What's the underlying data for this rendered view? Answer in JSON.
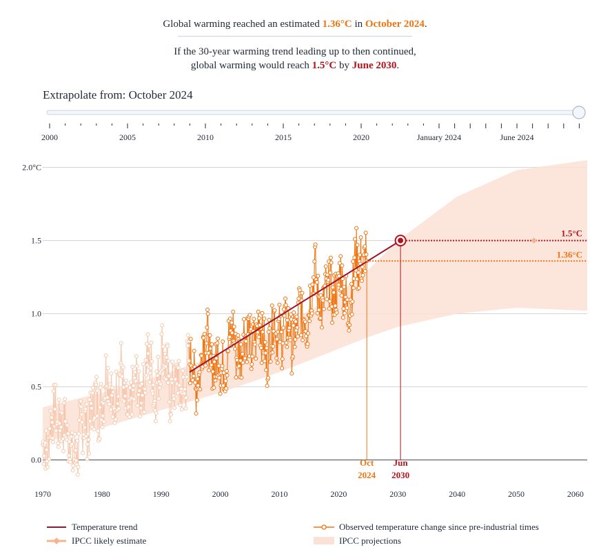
{
  "headline": {
    "l1_pre": "Global warming reached an estimated ",
    "l1_temp": "1.36°C",
    "l1_mid": " in ",
    "l1_date": "October 2024",
    "l1_end": ".",
    "l2_a": "If the 30-year warming trend leading up to then continued,",
    "l2_pre": "global warming would reach ",
    "l2_temp": "1.5°C",
    "l2_mid": " by ",
    "l2_date": "June 2030",
    "l2_end": "."
  },
  "slider": {
    "label_prefix": "Extrapolate from: ",
    "value": "October 2024",
    "ticks": [
      "2000",
      "2005",
      "2010",
      "2015",
      "2020",
      "January 2024",
      "June 2024"
    ]
  },
  "colors": {
    "trend": "#a0132b",
    "observed": "#f07410",
    "ipcc": "#fbd9c9",
    "faded": "#f6c7ad"
  },
  "chart_data": {
    "type": "line",
    "title": "",
    "xlabel": "",
    "ylabel": "",
    "xlim": [
      1970,
      2062
    ],
    "ylim": [
      -0.2,
      2.05
    ],
    "x_ticks": [
      1970,
      1980,
      1990,
      2000,
      2010,
      2020,
      2030,
      2040,
      2050,
      2060
    ],
    "y_ticks": [
      {
        "value": 0.0,
        "label": "0.0"
      },
      {
        "value": 0.5,
        "label": "0.5"
      },
      {
        "value": 1.0,
        "label": "1.0"
      },
      {
        "value": 1.5,
        "label": "1.5"
      },
      {
        "value": 2.0,
        "label": "2.0°C"
      }
    ],
    "grid": true,
    "trend_line": {
      "name": "Temperature trend",
      "x": [
        1994.8,
        2030.45
      ],
      "y": [
        0.6,
        1.5
      ]
    },
    "observed": {
      "name": "Observed temperature change since pre-industrial times",
      "annual_mean": [
        [
          1970,
          0.18
        ],
        [
          1971,
          0.12
        ],
        [
          1972,
          0.28
        ],
        [
          1973,
          0.34
        ],
        [
          1974,
          0.1
        ],
        [
          1975,
          0.14
        ],
        [
          1976,
          0.02
        ],
        [
          1977,
          0.3
        ],
        [
          1978,
          0.26
        ],
        [
          1979,
          0.36
        ],
        [
          1980,
          0.45
        ],
        [
          1981,
          0.52
        ],
        [
          1982,
          0.42
        ],
        [
          1983,
          0.56
        ],
        [
          1984,
          0.38
        ],
        [
          1985,
          0.4
        ],
        [
          1986,
          0.46
        ],
        [
          1987,
          0.58
        ],
        [
          1988,
          0.62
        ],
        [
          1989,
          0.52
        ],
        [
          1990,
          0.66
        ],
        [
          1991,
          0.64
        ],
        [
          1992,
          0.46
        ],
        [
          1993,
          0.48
        ],
        [
          1994,
          0.56
        ],
        [
          1995,
          0.64
        ],
        [
          1996,
          0.58
        ],
        [
          1997,
          0.7
        ],
        [
          1998,
          0.85
        ],
        [
          1999,
          0.62
        ],
        [
          2000,
          0.62
        ],
        [
          2001,
          0.74
        ],
        [
          2002,
          0.8
        ],
        [
          2003,
          0.8
        ],
        [
          2004,
          0.76
        ],
        [
          2005,
          0.86
        ],
        [
          2006,
          0.84
        ],
        [
          2007,
          0.86
        ],
        [
          2008,
          0.76
        ],
        [
          2009,
          0.86
        ],
        [
          2010,
          0.94
        ],
        [
          2011,
          0.84
        ],
        [
          2012,
          0.88
        ],
        [
          2013,
          0.92
        ],
        [
          2014,
          0.96
        ],
        [
          2015,
          1.08
        ],
        [
          2016,
          1.2
        ],
        [
          2017,
          1.14
        ],
        [
          2018,
          1.08
        ],
        [
          2019,
          1.18
        ],
        [
          2020,
          1.22
        ],
        [
          2021,
          1.1
        ],
        [
          2022,
          1.14
        ],
        [
          2023,
          1.3
        ],
        [
          2024,
          1.42
        ]
      ],
      "monthly_spread": 0.18,
      "visible_range": [
        1970,
        2024.75
      ],
      "faded_before": 1994.8,
      "last_value": 1.36
    },
    "ipcc_projection": {
      "name": "IPCC projections",
      "x": [
        1970,
        1980,
        1990,
        2000,
        2010,
        2020,
        2025,
        2030,
        2040,
        2050,
        2062
      ],
      "lower": [
        0.12,
        0.22,
        0.34,
        0.46,
        0.6,
        0.76,
        0.84,
        0.91,
        1.0,
        1.04,
        1.02
      ],
      "upper": [
        0.36,
        0.46,
        0.58,
        0.72,
        0.9,
        1.14,
        1.3,
        1.5,
        1.8,
        1.98,
        2.05
      ]
    },
    "ipcc_likely": {
      "name": "IPCC likely estimate",
      "x": [
        2030.45,
        2053
      ],
      "y": [
        1.5,
        1.5
      ]
    },
    "markers": [
      {
        "x": 2024.75,
        "y": 1.36,
        "label_1": "Oct",
        "label_2": "2024",
        "value_label": "1.36°C",
        "color": "#f07410"
      },
      {
        "x": 2030.45,
        "y": 1.5,
        "label_1": "Jun",
        "label_2": "2030",
        "value_label": "1.5°C",
        "color": "#b5121b"
      }
    ],
    "legend": {
      "placement": "bottom",
      "items": [
        {
          "key": "trend",
          "label": "Temperature trend"
        },
        {
          "key": "observed",
          "label": "Observed temperature change since pre-industrial times"
        },
        {
          "key": "likely",
          "label": "IPCC likely estimate"
        },
        {
          "key": "ipcc",
          "label": "IPCC projections"
        }
      ]
    }
  }
}
